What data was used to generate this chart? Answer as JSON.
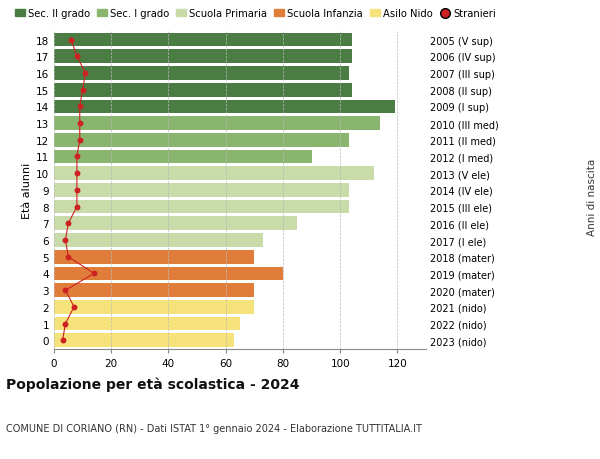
{
  "ages": [
    0,
    1,
    2,
    3,
    4,
    5,
    6,
    7,
    8,
    9,
    10,
    11,
    12,
    13,
    14,
    15,
    16,
    17,
    18
  ],
  "bar_values": [
    63,
    65,
    70,
    70,
    80,
    70,
    73,
    85,
    103,
    103,
    112,
    90,
    103,
    114,
    119,
    104,
    103,
    104,
    104
  ],
  "stranieri_values": [
    3,
    4,
    7,
    4,
    14,
    5,
    4,
    5,
    8,
    8,
    8,
    8,
    9,
    9,
    9,
    10,
    11,
    8,
    6
  ],
  "bar_colors": [
    "#f5e27a",
    "#f5e27a",
    "#f5e27a",
    "#e07d3a",
    "#e07d3a",
    "#e07d3a",
    "#c8dba8",
    "#c8dba8",
    "#c8dba8",
    "#c8dba8",
    "#c8dba8",
    "#8ab56e",
    "#8ab56e",
    "#8ab56e",
    "#4a7c44",
    "#4a7c44",
    "#4a7c44",
    "#4a7c44",
    "#4a7c44"
  ],
  "right_labels": [
    "2023 (nido)",
    "2022 (nido)",
    "2021 (nido)",
    "2020 (mater)",
    "2019 (mater)",
    "2018 (mater)",
    "2017 (I ele)",
    "2016 (II ele)",
    "2015 (III ele)",
    "2014 (IV ele)",
    "2013 (V ele)",
    "2012 (I med)",
    "2011 (II med)",
    "2010 (III med)",
    "2009 (I sup)",
    "2008 (II sup)",
    "2007 (III sup)",
    "2006 (IV sup)",
    "2005 (V sup)"
  ],
  "legend_labels": [
    "Sec. II grado",
    "Sec. I grado",
    "Scuola Primaria",
    "Scuola Infanzia",
    "Asilo Nido",
    "Stranieri"
  ],
  "legend_colors": [
    "#4a7c44",
    "#8ab56e",
    "#c8dba8",
    "#e07d3a",
    "#f5e27a",
    "#cc2222"
  ],
  "title": "Popolazione per età scolastica - 2024",
  "subtitle": "COMUNE DI CORIANO (RN) - Dati ISTAT 1° gennaio 2024 - Elaborazione TUTTITALIA.IT",
  "ylabel": "Età alunni",
  "ylabel_right": "Anni di nascita",
  "xlim_max": 130,
  "xticks": [
    0,
    20,
    40,
    60,
    80,
    100,
    120
  ],
  "stranieri_color": "#cc2222",
  "bg_color": "#ffffff",
  "grid_color": "#bbbbbb"
}
